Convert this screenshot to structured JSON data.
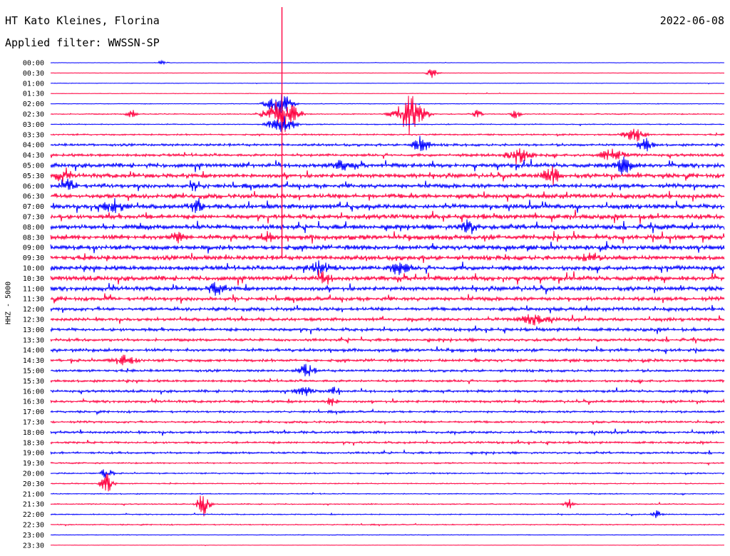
{
  "header": {
    "station": "HT Kato Kleines, Florina",
    "filter": "Applied filter: WWSSN-SP",
    "date": "2022-06-08",
    "channel": "HHZ - 5000"
  },
  "colors": {
    "even_row": "#0000ff",
    "odd_row": "#ff0040",
    "background": "#ffffff",
    "text": "#000000"
  },
  "chart_data": {
    "type": "line",
    "title": "HT Kato Kleines, Florina",
    "subtitle": "Applied filter: WWSSN-SP",
    "ylabel": "HHZ - 5000",
    "xlabel": "",
    "grid": false,
    "y_ticks": [
      "00:00",
      "00:30",
      "01:00",
      "01:30",
      "02:00",
      "02:30",
      "03:00",
      "03:30",
      "04:00",
      "04:30",
      "05:00",
      "05:30",
      "06:00",
      "06:30",
      "07:00",
      "07:30",
      "08:00",
      "08:30",
      "09:00",
      "09:30",
      "10:00",
      "10:30",
      "11:00",
      "11:30",
      "12:00",
      "12:30",
      "13:00",
      "13:30",
      "14:00",
      "14:30",
      "15:00",
      "15:30",
      "16:00",
      "16:30",
      "17:00",
      "17:30",
      "18:00",
      "18:30",
      "19:00",
      "19:30",
      "20:00",
      "20:30",
      "21:00",
      "21:30",
      "22:00",
      "22:30",
      "23:00",
      "23:30"
    ],
    "noise_level": [
      0.2,
      0.2,
      0.3,
      0.3,
      0.4,
      0.6,
      0.6,
      0.9,
      1.4,
      1.6,
      2.4,
      2.4,
      2.4,
      2.6,
      2.6,
      2.6,
      2.8,
      2.8,
      2.8,
      2.6,
      2.6,
      2.6,
      2.4,
      2.2,
      2.0,
      1.8,
      1.8,
      1.6,
      1.8,
      1.6,
      1.4,
      1.4,
      1.4,
      1.4,
      1.2,
      1.2,
      1.4,
      1.2,
      1.2,
      0.8,
      0.8,
      0.6,
      0.6,
      0.6,
      0.6,
      0.6,
      0.4,
      0.2
    ],
    "events": [
      {
        "row": 0,
        "minute": 5.0,
        "amp": 4,
        "dur": 0.4
      },
      {
        "row": 1,
        "minute": 17.0,
        "amp": 8,
        "dur": 0.5
      },
      {
        "row": 4,
        "minute": 10.2,
        "amp": 20,
        "dur": 1.0
      },
      {
        "row": 5,
        "minute": 10.3,
        "amp": 30,
        "dur": 1.2
      },
      {
        "row": 5,
        "minute": 16.0,
        "amp": 30,
        "dur": 1.2
      },
      {
        "row": 5,
        "minute": 3.6,
        "amp": 8,
        "dur": 0.4
      },
      {
        "row": 5,
        "minute": 19.0,
        "amp": 6,
        "dur": 0.4
      },
      {
        "row": 5,
        "minute": 20.7,
        "amp": 7,
        "dur": 0.4
      },
      {
        "row": 6,
        "minute": 10.3,
        "amp": 16,
        "dur": 1.0
      },
      {
        "row": 7,
        "minute": 26.0,
        "amp": 12,
        "dur": 0.8
      },
      {
        "row": 8,
        "minute": 16.5,
        "amp": 12,
        "dur": 0.7
      },
      {
        "row": 8,
        "minute": 26.5,
        "amp": 11,
        "dur": 0.6
      },
      {
        "row": 9,
        "minute": 20.8,
        "amp": 15,
        "dur": 1.0
      },
      {
        "row": 9,
        "minute": 25.0,
        "amp": 10,
        "dur": 1.0
      },
      {
        "row": 10,
        "minute": 25.6,
        "amp": 14,
        "dur": 0.7
      },
      {
        "row": 10,
        "minute": 13.0,
        "amp": 7,
        "dur": 0.8
      },
      {
        "row": 11,
        "minute": 22.3,
        "amp": 15,
        "dur": 0.6
      },
      {
        "row": 11,
        "minute": 0.5,
        "amp": 10,
        "dur": 0.5
      },
      {
        "row": 12,
        "minute": 0.9,
        "amp": 8,
        "dur": 0.5
      },
      {
        "row": 12,
        "minute": 6.5,
        "amp": 8,
        "dur": 0.4
      },
      {
        "row": 14,
        "minute": 2.8,
        "amp": 9,
        "dur": 1.0
      },
      {
        "row": 14,
        "minute": 6.5,
        "amp": 10,
        "dur": 0.5
      },
      {
        "row": 16,
        "minute": 18.6,
        "amp": 12,
        "dur": 0.6
      },
      {
        "row": 17,
        "minute": 5.6,
        "amp": 9,
        "dur": 0.5
      },
      {
        "row": 17,
        "minute": 9.7,
        "amp": 8,
        "dur": 0.5
      },
      {
        "row": 19,
        "minute": 24.0,
        "amp": 10,
        "dur": 0.6
      },
      {
        "row": 20,
        "minute": 12.0,
        "amp": 10,
        "dur": 1.0
      },
      {
        "row": 20,
        "minute": 15.5,
        "amp": 10,
        "dur": 0.8
      },
      {
        "row": 21,
        "minute": 12.2,
        "amp": 9,
        "dur": 0.6
      },
      {
        "row": 22,
        "minute": 7.4,
        "amp": 12,
        "dur": 0.6
      },
      {
        "row": 25,
        "minute": 21.5,
        "amp": 8,
        "dur": 1.2
      },
      {
        "row": 29,
        "minute": 3.3,
        "amp": 7,
        "dur": 1.0
      },
      {
        "row": 30,
        "minute": 11.4,
        "amp": 12,
        "dur": 0.6
      },
      {
        "row": 32,
        "minute": 11.3,
        "amp": 7,
        "dur": 0.8
      },
      {
        "row": 32,
        "minute": 12.7,
        "amp": 8,
        "dur": 0.4
      },
      {
        "row": 33,
        "minute": 12.5,
        "amp": 8,
        "dur": 0.4
      },
      {
        "row": 40,
        "minute": 2.5,
        "amp": 12,
        "dur": 0.4
      },
      {
        "row": 41,
        "minute": 2.5,
        "amp": 18,
        "dur": 0.5
      },
      {
        "row": 43,
        "minute": 6.8,
        "amp": 20,
        "dur": 0.5
      },
      {
        "row": 43,
        "minute": 23.1,
        "amp": 8,
        "dur": 0.4
      },
      {
        "row": 44,
        "minute": 27.0,
        "amp": 6,
        "dur": 0.4
      }
    ],
    "spike": {
      "row": 5,
      "minute": 10.3,
      "top_row": 0,
      "bottom_row": 19
    }
  }
}
